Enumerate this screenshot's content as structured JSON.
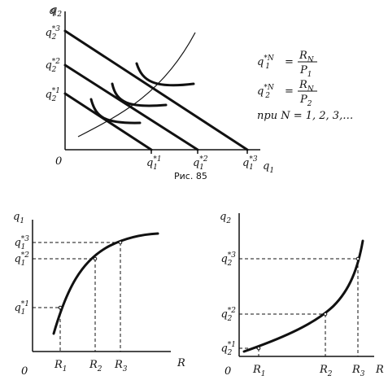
{
  "figure": {
    "caption": "Рис. 85",
    "top": {
      "y_axis": "q2",
      "x_axis": "q1",
      "origin": "0",
      "y_ticks": [
        "q2*3",
        "q2*2",
        "q2*1"
      ],
      "x_ticks": [
        "q1*1",
        "q1*2",
        "q1*3"
      ]
    },
    "formula": {
      "line1_lhs": "q1*N",
      "line1_num": "RN",
      "line1_den": "P1",
      "line2_lhs": "q2*N",
      "line2_num": "RN",
      "line2_den": "P2",
      "line3": "при N = 1, 2, 3,…"
    },
    "bottom_left": {
      "y_axis": "q1",
      "x_axis": "R",
      "origin": "0",
      "y_ticks": [
        "q1*3",
        "q1*2",
        "q1*1"
      ],
      "x_ticks": [
        "R1",
        "R2",
        "R3"
      ]
    },
    "bottom_right": {
      "y_axis": "q2",
      "x_axis": "R",
      "origin": "0",
      "y_ticks": [
        "q2*3",
        "q2*2",
        "q2*1"
      ],
      "x_ticks": [
        "R1",
        "R2",
        "R3"
      ]
    }
  }
}
